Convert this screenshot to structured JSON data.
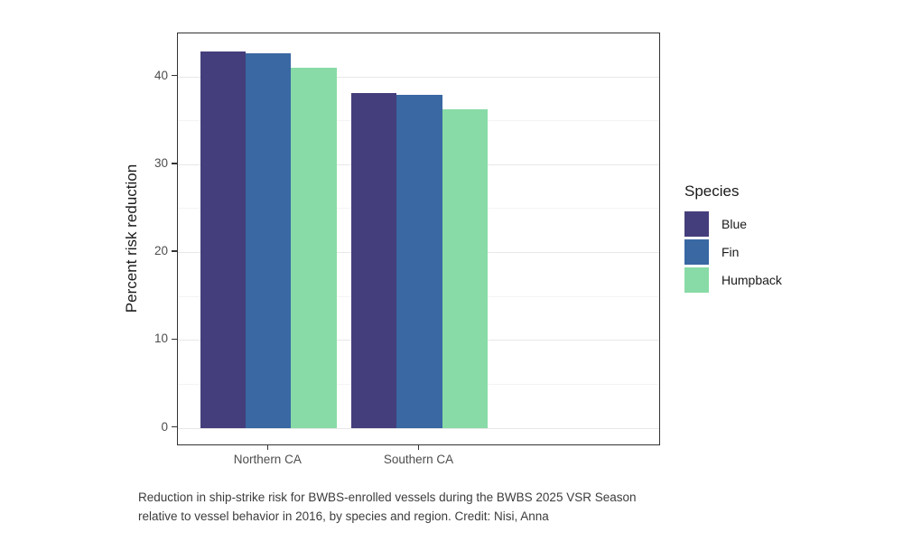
{
  "chart_data": {
    "type": "bar",
    "title": "",
    "categories": [
      "Northern CA",
      "Southern CA"
    ],
    "series": [
      {
        "name": "Blue",
        "color": "#453e7c",
        "values": [
          42.8,
          38.1
        ]
      },
      {
        "name": "Fin",
        "color": "#3968a3",
        "values": [
          42.6,
          37.9
        ]
      },
      {
        "name": "Humpback",
        "color": "#88dba6",
        "values": [
          41.0,
          36.3
        ]
      }
    ],
    "xlabel": "",
    "ylabel": "Percent risk reduction",
    "ylim": [
      -2.1,
      44.9
    ],
    "yticks": [
      0,
      10,
      20,
      30,
      40
    ],
    "yticks_minor": [
      5,
      15,
      25,
      35
    ],
    "grid": true,
    "bar_layout": "dodged",
    "legend": {
      "title": "Species",
      "position": "right",
      "entries": [
        "Blue",
        "Fin",
        "Humpback"
      ]
    }
  },
  "caption": {
    "line1": "Reduction in ship-strike risk for BWBS-enrolled vessels during the BWBS 2025 VSR Season",
    "line2": "relative to vessel behavior in 2016, by species and region. Credit: Nisi, Anna"
  }
}
